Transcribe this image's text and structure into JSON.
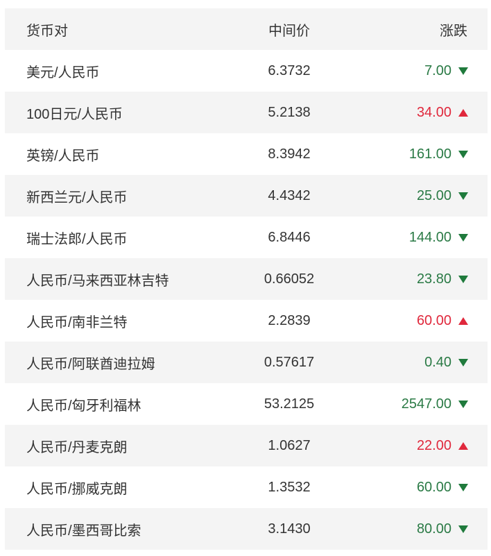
{
  "header": {
    "pair": "货币对",
    "mid": "中间价",
    "change": "涨跌"
  },
  "colors": {
    "up": "#e0283c",
    "down": "#2a7a45"
  },
  "rows": [
    {
      "pair": "美元/人民币",
      "mid": "6.3732",
      "change": "7.00",
      "dir": "down"
    },
    {
      "pair": "100日元/人民币",
      "mid": "5.2138",
      "change": "34.00",
      "dir": "up"
    },
    {
      "pair": "英镑/人民币",
      "mid": "8.3942",
      "change": "161.00",
      "dir": "down"
    },
    {
      "pair": "新西兰元/人民币",
      "mid": "4.4342",
      "change": "25.00",
      "dir": "down"
    },
    {
      "pair": "瑞士法郎/人民币",
      "mid": "6.8446",
      "change": "144.00",
      "dir": "down"
    },
    {
      "pair": "人民币/马来西亚林吉特",
      "mid": "0.66052",
      "change": "23.80",
      "dir": "down"
    },
    {
      "pair": "人民币/南非兰特",
      "mid": "2.2839",
      "change": "60.00",
      "dir": "up"
    },
    {
      "pair": "人民币/阿联酋迪拉姆",
      "mid": "0.57617",
      "change": "0.40",
      "dir": "down"
    },
    {
      "pair": "人民币/匈牙利福林",
      "mid": "53.2125",
      "change": "2547.00",
      "dir": "down"
    },
    {
      "pair": "人民币/丹麦克朗",
      "mid": "1.0627",
      "change": "22.00",
      "dir": "up"
    },
    {
      "pair": "人民币/挪威克朗",
      "mid": "1.3532",
      "change": "60.00",
      "dir": "down"
    },
    {
      "pair": "人民币/墨西哥比索",
      "mid": "3.1430",
      "change": "80.00",
      "dir": "down"
    }
  ]
}
